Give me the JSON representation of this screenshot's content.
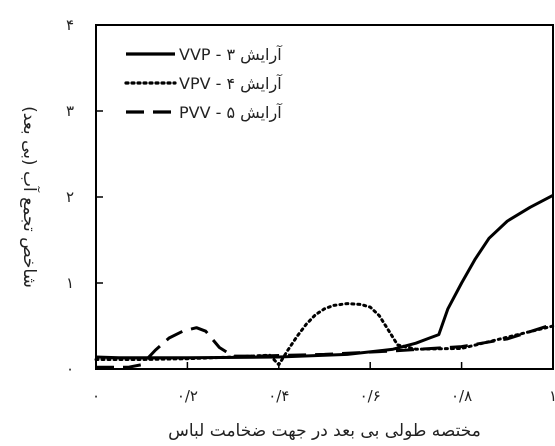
{
  "chart_data": {
    "type": "line",
    "xlabel": "مختصه طولی بی بعد در جهت ضخامت لباس",
    "ylabel": "شاخص تجمع آب (بی بعد)",
    "xlim": [
      0,
      1
    ],
    "ylim": [
      0,
      4
    ],
    "x_ticks": [
      {
        "value": 0,
        "label": "۰"
      },
      {
        "value": 0.2,
        "label": "۰/۲"
      },
      {
        "value": 0.4,
        "label": "۰/۴"
      },
      {
        "value": 0.6,
        "label": "۰/۶"
      },
      {
        "value": 0.8,
        "label": "۰/۸"
      },
      {
        "value": 1,
        "label": "۱"
      }
    ],
    "y_ticks": [
      {
        "value": 0,
        "label": "۰"
      },
      {
        "value": 1,
        "label": "۱"
      },
      {
        "value": 2,
        "label": "۲"
      },
      {
        "value": 3,
        "label": "۳"
      },
      {
        "value": 4,
        "label": "۴"
      }
    ],
    "legend_position": "top-left",
    "series": [
      {
        "name": "آرایش ۳ - VVP",
        "style": "solid",
        "color": "#000000",
        "x": [
          0,
          0.05,
          0.2,
          0.4,
          0.55,
          0.65,
          0.7,
          0.73,
          0.75,
          0.77,
          0.8,
          0.83,
          0.86,
          0.9,
          0.95,
          1.0
        ],
        "y": [
          0.14,
          0.13,
          0.13,
          0.14,
          0.17,
          0.23,
          0.3,
          0.36,
          0.4,
          0.7,
          1.0,
          1.28,
          1.52,
          1.72,
          1.88,
          2.02
        ]
      },
      {
        "name": "آرایش ۴ - VPV",
        "style": "dotted",
        "color": "#000000",
        "x": [
          0,
          0.1,
          0.2,
          0.3,
          0.38,
          0.4,
          0.42,
          0.44,
          0.46,
          0.48,
          0.5,
          0.52,
          0.55,
          0.58,
          0.6,
          0.62,
          0.64,
          0.66,
          0.7,
          0.8,
          1.0
        ],
        "y": [
          0.11,
          0.11,
          0.12,
          0.14,
          0.16,
          0.05,
          0.22,
          0.38,
          0.52,
          0.63,
          0.7,
          0.74,
          0.76,
          0.75,
          0.72,
          0.62,
          0.45,
          0.28,
          0.23,
          0.24,
          0.5
        ]
      },
      {
        "name": "آرایش ۵ - PVV",
        "style": "dashed",
        "color": "#000000",
        "x": [
          0,
          0.07,
          0.1,
          0.13,
          0.16,
          0.19,
          0.22,
          0.24,
          0.27,
          0.3,
          0.35,
          0.5,
          0.65,
          0.8,
          0.9,
          1.0
        ],
        "y": [
          0.02,
          0.02,
          0.05,
          0.22,
          0.36,
          0.44,
          0.48,
          0.44,
          0.25,
          0.15,
          0.15,
          0.17,
          0.21,
          0.26,
          0.35,
          0.52
        ]
      }
    ]
  }
}
